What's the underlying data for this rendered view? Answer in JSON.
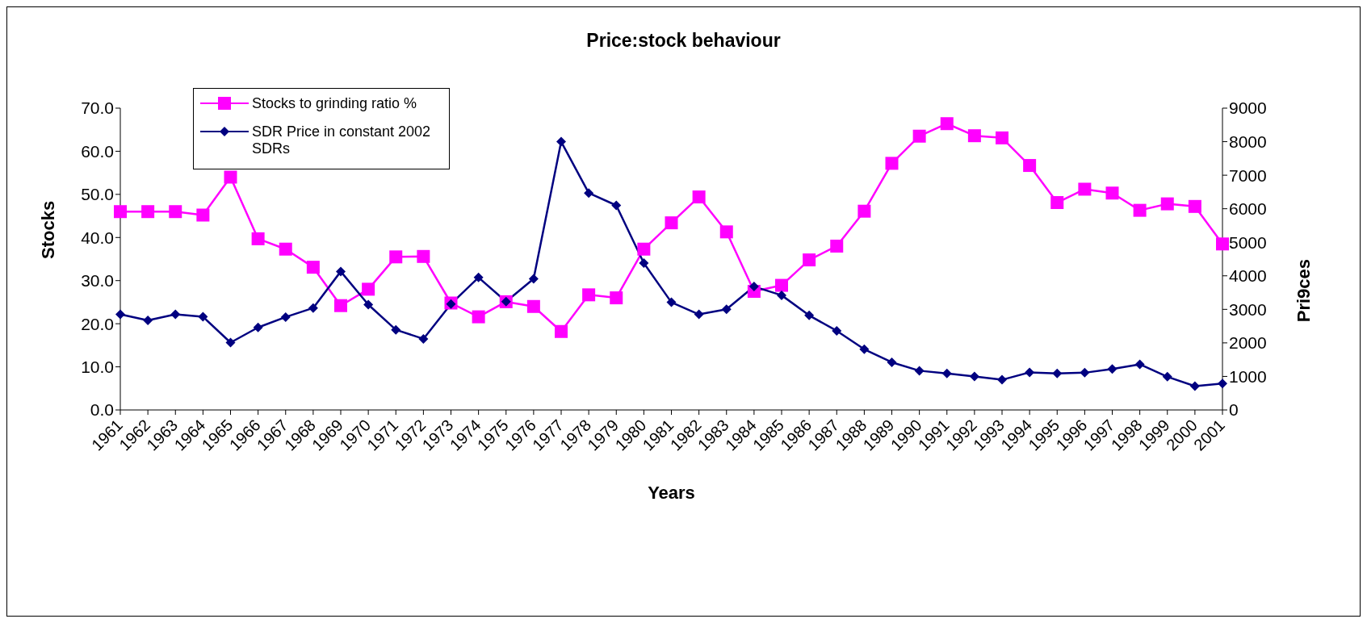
{
  "chart_data": {
    "type": "line",
    "title": "Price:stock behaviour",
    "xlabel": "Years",
    "ylabel": "Stocks",
    "y2label": "Pri9ces",
    "categories": [
      "1961",
      "1962",
      "1963",
      "1964",
      "1965",
      "1966",
      "1967",
      "1968",
      "1969",
      "1970",
      "1971",
      "1972",
      "1973",
      "1974",
      "1975",
      "1976",
      "1977",
      "1978",
      "1979",
      "1980",
      "1981",
      "1982",
      "1983",
      "1984",
      "1985",
      "1986",
      "1987",
      "1988",
      "1989",
      "1990",
      "1991",
      "1992",
      "1993",
      "1994",
      "1995",
      "1996",
      "1997",
      "1998",
      "1999",
      "2000",
      "2001"
    ],
    "series": [
      {
        "name": "Stocks to grinding ratio %",
        "color": "#ff00ff",
        "marker": "square",
        "values": [
          46.0,
          46.0,
          46.0,
          45.2,
          54.0,
          39.7,
          37.3,
          33.1,
          24.2,
          28.0,
          35.5,
          35.6,
          24.8,
          21.6,
          25.1,
          24.0,
          18.2,
          26.7,
          26.0,
          37.3,
          43.4,
          49.4,
          41.3,
          27.5,
          28.9,
          34.8,
          38.0,
          46.1,
          57.2,
          63.5,
          66.4,
          63.6,
          63.1,
          56.7,
          48.1,
          51.2,
          50.3,
          46.3,
          47.8,
          47.2,
          38.5
        ]
      },
      {
        "name": "SDR Price in constant 2002 SDRs",
        "color": "#000080",
        "marker": "diamond",
        "axis": "y2",
        "values": [
          2850,
          2670,
          2850,
          2780,
          2010,
          2460,
          2770,
          3040,
          4130,
          3140,
          2390,
          2120,
          3160,
          3950,
          3230,
          3910,
          8000,
          6470,
          6100,
          4380,
          3210,
          2850,
          3000,
          3680,
          3420,
          2820,
          2360,
          1810,
          1420,
          1170,
          1090,
          1000,
          900,
          1120,
          1090,
          1110,
          1220,
          1360,
          990,
          710,
          790
        ]
      }
    ],
    "ylim": [
      0,
      70
    ],
    "yticks": [
      {
        "value": 0,
        "label": "0.0"
      },
      {
        "value": 10,
        "label": "10.0"
      },
      {
        "value": 20,
        "label": "20.0"
      },
      {
        "value": 30,
        "label": "30.0"
      },
      {
        "value": 40,
        "label": "40.0"
      },
      {
        "value": 50,
        "label": "50.0"
      },
      {
        "value": 60,
        "label": "60.0"
      },
      {
        "value": 70,
        "label": "70.0"
      }
    ],
    "y2lim": [
      0,
      9000
    ],
    "y2ticks": [
      0,
      1000,
      2000,
      3000,
      4000,
      5000,
      6000,
      7000,
      8000,
      9000
    ],
    "legend": "top left",
    "grid": false,
    "line_style": "solid"
  }
}
